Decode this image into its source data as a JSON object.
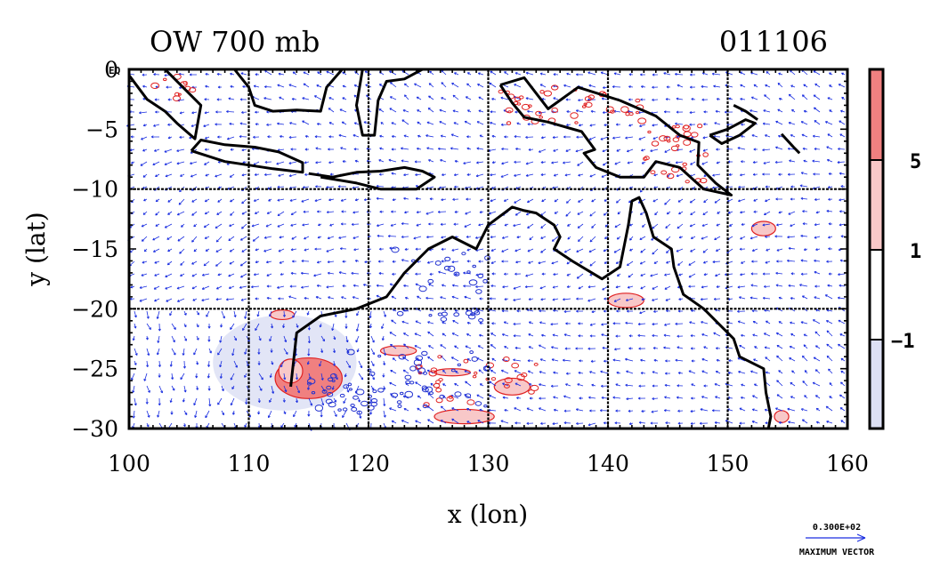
{
  "chart_data": {
    "type": "heatmap",
    "title": "OW 700 mb",
    "date_label": "011106",
    "xlabel": "x (lon)",
    "ylabel": "y (lat)",
    "xlim": [
      100,
      160
    ],
    "ylim": [
      -30,
      0
    ],
    "x_ticks": [
      "100",
      "110",
      "120",
      "130",
      "140",
      "150",
      "160"
    ],
    "y_ticks": [
      "0",
      "−5",
      "−10",
      "−15",
      "−20",
      "−25",
      "−30"
    ],
    "grid_lines_lon": [
      110,
      120,
      130,
      140,
      150
    ],
    "grid_lines_lat": [
      -10,
      -20
    ],
    "corner_label": "EQ",
    "colorbar": {
      "levels": [
        "5",
        "1",
        "−1"
      ],
      "colors": [
        "#f08080",
        "#f8c8c8",
        "#ffffff",
        "#dde0f4"
      ]
    },
    "contour_colors": {
      "positive": "#e02020",
      "negative": "#2030d0",
      "vectors": "#1a2ee0",
      "coast": "#000000"
    },
    "vector_key": {
      "value": "0.300E+02",
      "label": "MAXIMUM VECTOR"
    },
    "positive_regions": [
      {
        "lon": 115.0,
        "lat": -25.8,
        "r_lon": 2.8,
        "r_lat": 1.7,
        "level": "high"
      },
      {
        "lon": 113.5,
        "lat": -25.2,
        "r_lon": 1.0,
        "r_lat": 1.0,
        "level": "low"
      },
      {
        "lon": 112.8,
        "lat": -20.5,
        "r_lon": 1.0,
        "r_lat": 0.4,
        "level": "low"
      },
      {
        "lon": 141.5,
        "lat": -19.3,
        "r_lon": 1.5,
        "r_lat": 0.6,
        "level": "low"
      },
      {
        "lon": 153.0,
        "lat": -13.3,
        "r_lon": 1.0,
        "r_lat": 0.6,
        "level": "low"
      },
      {
        "lon": 127.0,
        "lat": -25.3,
        "r_lon": 1.5,
        "r_lat": 0.3,
        "level": "low"
      },
      {
        "lon": 132.0,
        "lat": -26.5,
        "r_lon": 1.5,
        "r_lat": 0.7,
        "level": "low"
      },
      {
        "lon": 128.0,
        "lat": -29.0,
        "r_lon": 2.5,
        "r_lat": 0.6,
        "level": "low"
      },
      {
        "lon": 154.5,
        "lat": -29.0,
        "r_lon": 0.6,
        "r_lat": 0.5,
        "level": "low"
      },
      {
        "lon": 122.5,
        "lat": -23.5,
        "r_lon": 1.5,
        "r_lat": 0.4,
        "level": "low"
      }
    ],
    "negative_regions": [
      {
        "lon": 113.0,
        "lat": -24.5,
        "r_lon": 6.0,
        "r_lat": 4.0
      }
    ]
  }
}
